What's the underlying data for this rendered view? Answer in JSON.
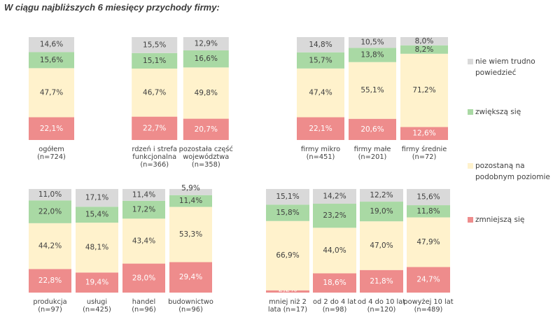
{
  "title": "W ciągu najbliższych 6 miesięcy przychody firmy:",
  "colors": {
    "nie_wiem": "#d9d9d9",
    "zwieksza": "#a9d9a4",
    "pozostana": "#fff2cc",
    "zmniejsza": "#ee8c8c"
  },
  "legend": [
    {
      "key": "nie_wiem",
      "label": "nie wiem trudno powiedzieć"
    },
    {
      "key": "zwieksza",
      "label": "zwiększą się"
    },
    {
      "key": "pozostana",
      "label": "pozostaną na podobnym poziomie"
    },
    {
      "key": "zmniejsza",
      "label": "zmniejszą się"
    }
  ],
  "chart_data": [
    {
      "type": "bar",
      "stacked": true,
      "unit": "%",
      "ylim": [
        0,
        100
      ],
      "series_order": [
        "zmniejsza",
        "pozostana",
        "zwieksza",
        "nie_wiem"
      ],
      "categories": [
        "ogółem\n(n=724)",
        "",
        "rdzeń i strefa\nfunkcjonalna\n(n=366)",
        "pozostała część\nwojewództwa\n(n=358)"
      ],
      "series": [
        {
          "key": "zmniejsza",
          "values": [
            22.1,
            null,
            22.7,
            20.7
          ],
          "labels": [
            "22,1%",
            "",
            "22,7%",
            "20,7%"
          ]
        },
        {
          "key": "pozostana",
          "values": [
            47.7,
            null,
            46.7,
            49.8
          ],
          "labels": [
            "47,7%",
            "",
            "46,7%",
            "49,8%"
          ]
        },
        {
          "key": "zwieksza",
          "values": [
            15.6,
            null,
            15.1,
            16.6
          ],
          "labels": [
            "15,6%",
            "",
            "15,1%",
            "16,6%"
          ]
        },
        {
          "key": "nie_wiem",
          "values": [
            14.6,
            null,
            15.5,
            12.9
          ],
          "labels": [
            "14,6%",
            "",
            "15,5%",
            "12,9%"
          ]
        }
      ]
    },
    {
      "type": "bar",
      "stacked": true,
      "unit": "%",
      "ylim": [
        0,
        100
      ],
      "series_order": [
        "zmniejsza",
        "pozostana",
        "zwieksza",
        "nie_wiem"
      ],
      "categories": [
        "firmy mikro\n(n=451)",
        "firmy małe\n(n=201)",
        "firmy średnie\n(n=72)"
      ],
      "series": [
        {
          "key": "zmniejsza",
          "values": [
            22.1,
            20.6,
            12.6
          ],
          "labels": [
            "22,1%",
            "20,6%",
            "12,6%"
          ]
        },
        {
          "key": "pozostana",
          "values": [
            47.4,
            55.1,
            71.2
          ],
          "labels": [
            "47,4%",
            "55,1%",
            "71,2%"
          ]
        },
        {
          "key": "zwieksza",
          "values": [
            15.7,
            13.8,
            8.2
          ],
          "labels": [
            "15,7%",
            "13,8%",
            "8,2%"
          ]
        },
        {
          "key": "nie_wiem",
          "values": [
            14.8,
            10.5,
            8.0
          ],
          "labels": [
            "14,8%",
            "10,5%",
            "8,0%"
          ]
        }
      ]
    },
    {
      "type": "bar",
      "stacked": true,
      "unit": "%",
      "ylim": [
        0,
        100
      ],
      "series_order": [
        "zmniejsza",
        "pozostana",
        "zwieksza",
        "nie_wiem"
      ],
      "categories": [
        "produkcja\n(n=97)",
        "usługi\n(n=425)",
        "handel\n(n=96)",
        "budownictwo\n(n=96)"
      ],
      "series": [
        {
          "key": "zmniejsza",
          "values": [
            22.8,
            19.4,
            28.0,
            29.4
          ],
          "labels": [
            "22,8%",
            "19,4%",
            "28,0%",
            "29,4%"
          ]
        },
        {
          "key": "pozostana",
          "values": [
            44.2,
            48.1,
            43.4,
            53.3
          ],
          "labels": [
            "44,2%",
            "48,1%",
            "43,4%",
            "53,3%"
          ]
        },
        {
          "key": "zwieksza",
          "values": [
            22.0,
            15.4,
            17.2,
            11.4
          ],
          "labels": [
            "22,0%",
            "15,4%",
            "17,2%",
            "11,4%"
          ]
        },
        {
          "key": "nie_wiem",
          "values": [
            11.0,
            17.1,
            11.4,
            5.9
          ],
          "labels": [
            "11,0%",
            "17,1%",
            "11,4%",
            "5,9%"
          ]
        }
      ]
    },
    {
      "type": "bar",
      "stacked": true,
      "unit": "%",
      "ylim": [
        0,
        100
      ],
      "series_order": [
        "zmniejsza",
        "pozostana",
        "zwieksza",
        "nie_wiem"
      ],
      "categories": [
        "mniej niż 2\nlata (n=17)",
        "od 2 do 4 lat\n(n=98)",
        "od 4 do 10 lat\n(n=120)",
        "powyżej 10 lat\n(n=489)"
      ],
      "series": [
        {
          "key": "zmniejsza",
          "values": [
            2.2,
            18.6,
            21.8,
            24.7
          ],
          "labels": [
            "2,2%",
            "18,6%",
            "21,8%",
            "24,7%"
          ]
        },
        {
          "key": "pozostana",
          "values": [
            66.9,
            44.0,
            47.0,
            47.9
          ],
          "labels": [
            "66,9%",
            "44,0%",
            "47,0%",
            "47,9%"
          ]
        },
        {
          "key": "zwieksza",
          "values": [
            15.8,
            23.2,
            19.0,
            11.8
          ],
          "labels": [
            "15,8%",
            "23,2%",
            "19,0%",
            "11,8%"
          ]
        },
        {
          "key": "nie_wiem",
          "values": [
            15.1,
            14.2,
            12.2,
            15.6
          ],
          "labels": [
            "15,1%",
            "14,2%",
            "12,2%",
            "15,6%"
          ]
        }
      ]
    }
  ]
}
